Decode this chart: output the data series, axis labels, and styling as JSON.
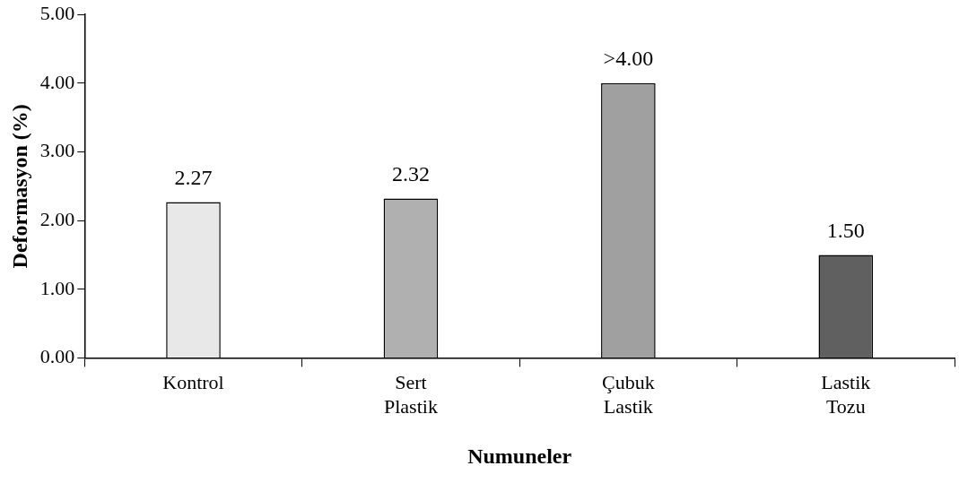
{
  "chart_data": {
    "type": "bar",
    "xlabel": "Numuneler",
    "ylabel": "Deformasyon (%)",
    "categories": [
      "Kontrol",
      "Sert Plastik",
      "Çubuk Lastik",
      "Lastik Tozu"
    ],
    "values": [
      2.27,
      2.32,
      4.0,
      1.5
    ],
    "value_labels": [
      "2.27",
      "2.32",
      ">4.00",
      "1.50"
    ],
    "colors": [
      "#e8e8e8",
      "#b0b0b0",
      "#a0a0a0",
      "#606060"
    ],
    "ylim": [
      0,
      5
    ],
    "yticks": [
      {
        "value": 0,
        "label": "0.00"
      },
      {
        "value": 1,
        "label": "1.00"
      },
      {
        "value": 2,
        "label": "2.00"
      },
      {
        "value": 3,
        "label": "3.00"
      },
      {
        "value": 4,
        "label": "4.00"
      },
      {
        "value": 5,
        "label": "5.00"
      }
    ],
    "grid": false,
    "legend": false
  }
}
